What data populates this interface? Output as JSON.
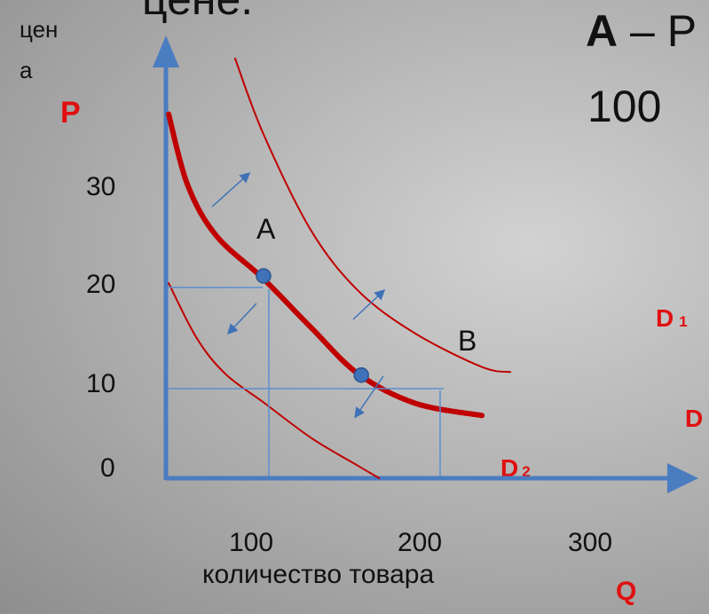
{
  "slide": {
    "title_fragment": "цене.",
    "note_letter": "A",
    "note_dash": " – Р",
    "note_value": "100"
  },
  "chart_data": {
    "type": "line",
    "ylabel_line1": "цен",
    "ylabel_line2": "а",
    "y_axis_letter": "P",
    "x_axis_letter": "Q",
    "xlabel": "количество товара",
    "x_ticks": [
      "100",
      "200",
      "300"
    ],
    "y_ticks": [
      "0",
      "10",
      "20",
      "30"
    ],
    "xlim": [
      0,
      360
    ],
    "ylim": [
      0,
      45
    ],
    "series": [
      {
        "name": "D",
        "color": "#c00000",
        "width": 6,
        "x": [
          0,
          20,
          50,
          100,
          150,
          200,
          260,
          330
        ],
        "y": [
          36,
          29,
          24,
          19.7,
          14.9,
          10.3,
          7.4,
          6.2
        ]
      },
      {
        "name": "D 1",
        "color": "#c00000",
        "width": 2,
        "x": [
          70,
          100,
          150,
          200,
          260,
          330,
          360
        ],
        "y": [
          41.5,
          34,
          24.5,
          18.5,
          14.3,
          11,
          10.5
        ]
      },
      {
        "name": "D 2",
        "color": "#c00000",
        "width": 2,
        "x": [
          0,
          30,
          60,
          100,
          150,
          200,
          222
        ],
        "y": [
          19.3,
          13.8,
          10.3,
          7.5,
          4,
          1.2,
          0
        ]
      }
    ],
    "points": [
      {
        "label": "A",
        "x": 100,
        "y": 20
      },
      {
        "label": "B",
        "x": 203,
        "y": 10.2
      }
    ],
    "colors": {
      "axis": "#4a7cc0",
      "curve": "#c00000",
      "point": "#3f72b8",
      "labels_red": "#e01010"
    }
  }
}
